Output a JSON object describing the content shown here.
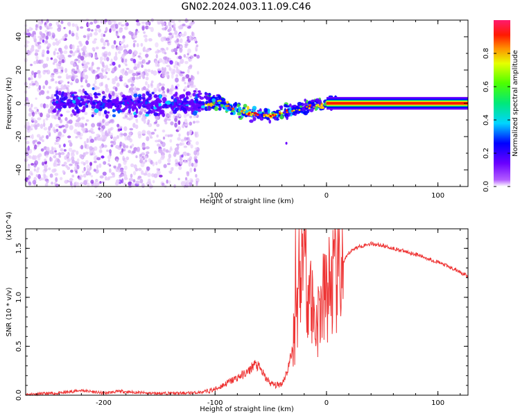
{
  "title": "GN02.2024.003.11.09.C46",
  "colors": {
    "snr_line": "#ee3333",
    "axis": "#000000",
    "background": "#ffffff"
  },
  "chart_data": [
    {
      "type": "heatmap",
      "title": "GN02.2024.003.11.09.C46",
      "xlabel": "Height of straight line (km)",
      "ylabel": "Frequency (Hz)",
      "xlim": [
        -270,
        127
      ],
      "ylim": [
        -50,
        50
      ],
      "xticks": [
        -200,
        -100,
        0,
        100
      ],
      "yticks": [
        -40,
        -20,
        0,
        20,
        40
      ],
      "colorbar": {
        "label": "Normalized spectral amplitude",
        "range": [
          0.0,
          1.0
        ],
        "ticks": [
          "0.0",
          "0.2",
          "0.4",
          "0.6",
          "0.8"
        ],
        "colormap": "rainbow (violet-blue-cyan-green-yellow-red-magenta)"
      },
      "features": [
        "Noisy scattered low-amplitude energy from -270 to -115 km across all frequencies",
        "Dense band near 0 Hz from -245 to -10 km, dipping to about -7 Hz near -55 km",
        "Steady high-amplitude tone at 0 Hz from 0 to 127 km"
      ]
    },
    {
      "type": "line",
      "xlabel": "Height of straight line (km)",
      "ylabel": "SNR (10 * v/v)",
      "y_multiplier": "(x10^4)",
      "xlim": [
        -270,
        127
      ],
      "ylim": [
        0.0,
        1.7
      ],
      "xticks": [
        -200,
        -100,
        0,
        100
      ],
      "yticks": [
        "0.0",
        "0.5",
        "1.0",
        "1.5"
      ],
      "series": [
        {
          "color": "#ee3333",
          "x": [
            -270,
            -240,
            -220,
            -200,
            -185,
            -160,
            -130,
            -110,
            -100,
            -90,
            -80,
            -70,
            -65,
            -60,
            -55,
            -50,
            -45,
            -40,
            -35,
            -30,
            -25,
            -20,
            -15,
            -10,
            -5,
            0,
            5,
            10,
            15,
            20,
            25,
            30,
            40,
            50,
            60,
            70,
            80,
            90,
            100,
            110,
            120,
            127
          ],
          "y": [
            0.01,
            0.02,
            0.05,
            0.02,
            0.04,
            0.02,
            0.02,
            0.03,
            0.06,
            0.12,
            0.18,
            0.24,
            0.32,
            0.28,
            0.18,
            0.12,
            0.1,
            0.12,
            0.25,
            0.5,
            1.1,
            1.4,
            1.1,
            0.7,
            0.9,
            1.05,
            1.15,
            1.25,
            1.35,
            1.45,
            1.5,
            1.52,
            1.55,
            1.53,
            1.5,
            1.47,
            1.44,
            1.4,
            1.36,
            1.31,
            1.26,
            1.21
          ]
        }
      ]
    }
  ]
}
